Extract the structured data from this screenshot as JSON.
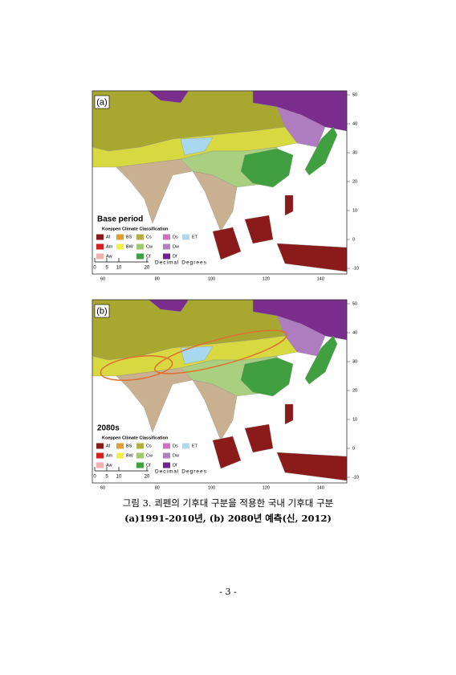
{
  "figures": [
    {
      "panel": "(a)",
      "period": "Base period",
      "legend_title": "Koeppen Climate Classification",
      "legend": [
        {
          "label": "Af",
          "color": "#8b1a1a"
        },
        {
          "label": "Am",
          "color": "#d42020"
        },
        {
          "label": "Aw",
          "color": "#f0b0b0"
        },
        {
          "label": "BS",
          "color": "#e0a030"
        },
        {
          "label": "BW",
          "color": "#f0f040"
        },
        {
          "label": "Cs",
          "color": "#b0b040"
        },
        {
          "label": "Cw",
          "color": "#a0c870"
        },
        {
          "label": "Cf",
          "color": "#40a040"
        },
        {
          "label": "Ds",
          "color": "#d070c0"
        },
        {
          "label": "Dw",
          "color": "#b080c0"
        },
        {
          "label": "Df",
          "color": "#702090"
        },
        {
          "label": "ET",
          "color": "#b0d8f0"
        }
      ],
      "scale_labels": [
        "0",
        "5",
        "10",
        "20"
      ],
      "scale_unit": "Decimal Degrees",
      "lat_labels": [
        "50",
        "40",
        "30",
        "20",
        "10",
        "0",
        "-10"
      ],
      "lon_labels": [
        "60",
        "80",
        "100",
        "120",
        "140"
      ]
    },
    {
      "panel": "(b)",
      "period": "2080s",
      "legend_title": "Koeppen Climate Classification",
      "legend": [
        {
          "label": "Af",
          "color": "#8b1a1a"
        },
        {
          "label": "Am",
          "color": "#d42020"
        },
        {
          "label": "Aw",
          "color": "#f0b0b0"
        },
        {
          "label": "BS",
          "color": "#e0a030"
        },
        {
          "label": "BW",
          "color": "#f0f040"
        },
        {
          "label": "Cs",
          "color": "#b0b040"
        },
        {
          "label": "Cw",
          "color": "#a0c870"
        },
        {
          "label": "Cf",
          "color": "#40a040"
        },
        {
          "label": "Ds",
          "color": "#d070c0"
        },
        {
          "label": "Dw",
          "color": "#b080c0"
        },
        {
          "label": "Df",
          "color": "#702090"
        },
        {
          "label": "ET",
          "color": "#b0d8f0"
        }
      ],
      "scale_labels": [
        "0",
        "5",
        "10",
        "20"
      ],
      "scale_unit": "Decimal Degrees",
      "lat_labels": [
        "50",
        "40",
        "30",
        "20",
        "10",
        "0",
        "-10"
      ],
      "lon_labels": [
        "60",
        "80",
        "100",
        "120",
        "140"
      ]
    }
  ],
  "caption": {
    "line1": "그림 3. 쾨펜의 기후대 구분을 적용한 국내 기후대 구분",
    "line2": "(a)1991-2010년, (b) 2080년 예측(신, 2012)"
  },
  "page_number": "- 3 -"
}
